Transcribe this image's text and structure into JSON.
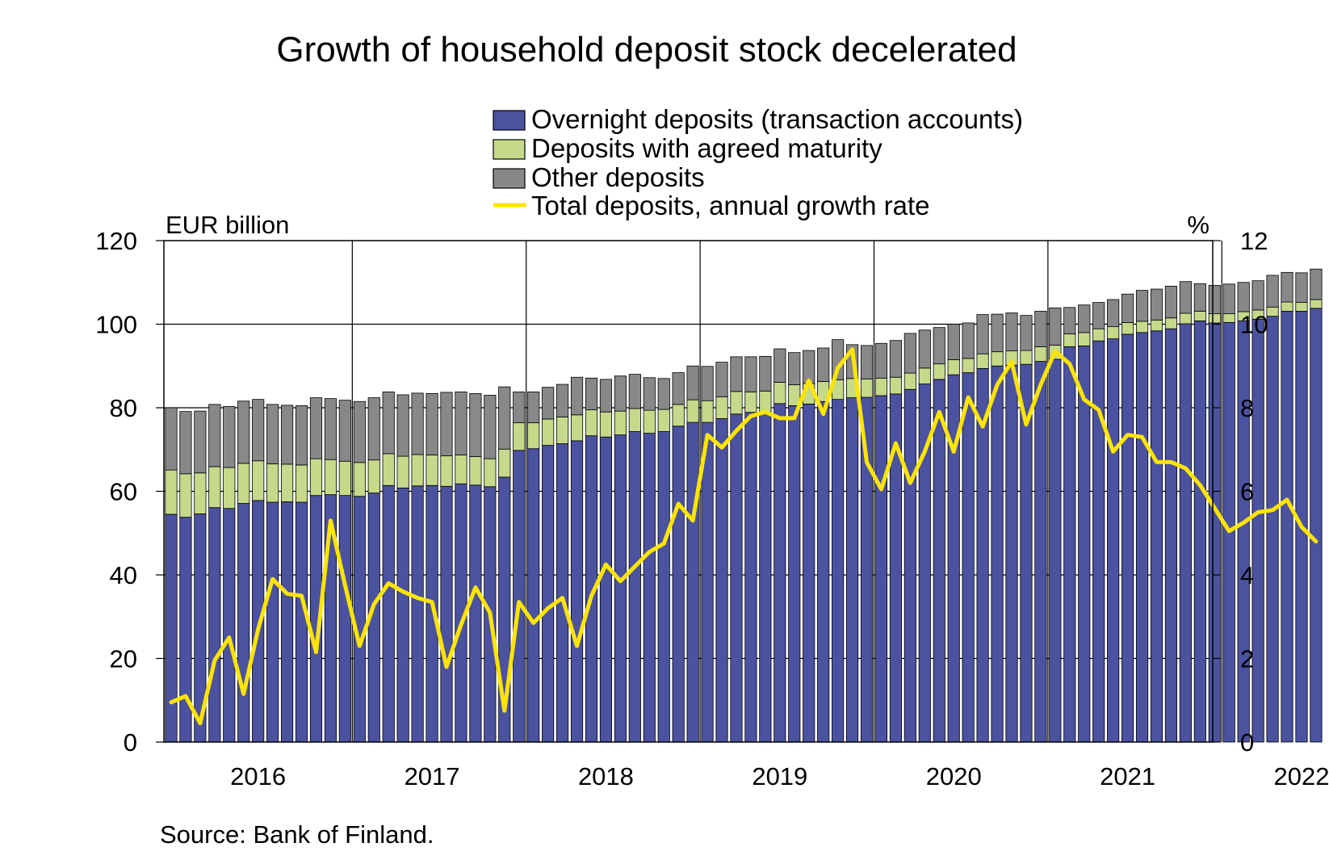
{
  "chart_data": {
    "type": "bar",
    "stacked": true,
    "title": "Growth of household deposit stock decelerated",
    "source": "Source: Bank of Finland.",
    "left_axis": {
      "unit_label": "EUR billion",
      "range": [
        0,
        120
      ],
      "ticks": [
        "0",
        "20",
        "40",
        "60",
        "80",
        "100",
        "120"
      ]
    },
    "right_axis": {
      "unit_label": "%",
      "range": [
        0,
        12
      ],
      "ticks": [
        "0",
        "2",
        "4",
        "6",
        "8",
        "10",
        "12"
      ]
    },
    "x_axis": {
      "years": [
        "2016",
        "2017",
        "2018",
        "2019",
        "2020",
        "2021",
        "2022"
      ],
      "start_month": "2015-12",
      "end_month": "2022-04",
      "frequency": "monthly"
    },
    "grid": true,
    "legend_position": "top-right",
    "colors": {
      "overnight": "#4B52A0",
      "agreed": "#C6D98A",
      "other": "#888888",
      "growth_line": "#FFE500"
    },
    "legend": {
      "overnight": "Overnight deposits (transaction accounts)",
      "agreed": "Deposits with agreed maturity",
      "other": "Other deposits",
      "growth": "Total deposits, annual growth rate"
    },
    "series": [
      {
        "name": "Overnight deposits (transaction accounts)",
        "axis": "left",
        "values": [
          54.5,
          53.8,
          54.6,
          56.1,
          55.9,
          57.1,
          57.8,
          57.4,
          57.5,
          57.4,
          59.0,
          59.2,
          59.0,
          58.8,
          59.6,
          61.4,
          60.8,
          61.3,
          61.4,
          61.2,
          61.8,
          61.5,
          61.1,
          63.4,
          69.8,
          70.2,
          71.0,
          71.4,
          72.1,
          73.3,
          73.0,
          73.5,
          74.3,
          73.9,
          74.3,
          75.6,
          76.5,
          76.5,
          77.4,
          78.5,
          78.9,
          79.0,
          81.0,
          80.5,
          80.9,
          81.5,
          82.0,
          82.4,
          82.5,
          82.9,
          83.3,
          84.4,
          85.7,
          86.8,
          87.9,
          88.4,
          89.4,
          90.0,
          90.2,
          90.4,
          91.1,
          91.6,
          94.6,
          94.8,
          96.0,
          96.5,
          97.6,
          98.0,
          98.4,
          98.9,
          100.1,
          100.8,
          100.3,
          100.4,
          100.8,
          101.2,
          101.9,
          103.1,
          103.1,
          103.8
        ]
      },
      {
        "name": "Deposits with agreed maturity",
        "axis": "left",
        "values": [
          10.6,
          10.4,
          9.8,
          9.8,
          9.8,
          9.6,
          9.5,
          9.2,
          9.0,
          8.9,
          8.8,
          8.4,
          8.2,
          8.1,
          7.9,
          7.6,
          7.6,
          7.5,
          7.3,
          7.3,
          6.9,
          6.8,
          6.7,
          6.7,
          6.6,
          6.2,
          6.3,
          6.4,
          6.2,
          6.2,
          6.0,
          5.7,
          5.5,
          5.5,
          5.3,
          5.2,
          5.4,
          5.2,
          5.2,
          5.4,
          4.9,
          5.0,
          5.1,
          5.0,
          4.9,
          4.8,
          4.7,
          4.6,
          4.4,
          4.2,
          4.0,
          3.9,
          3.8,
          3.7,
          3.6,
          3.4,
          3.5,
          3.4,
          3.4,
          3.3,
          3.5,
          3.4,
          3.1,
          3.2,
          2.9,
          2.9,
          2.8,
          2.7,
          2.6,
          2.6,
          2.5,
          2.3,
          2.2,
          2.1,
          2.2,
          2.2,
          2.2,
          2.2,
          2.1,
          2.1
        ]
      },
      {
        "name": "Other deposits",
        "axis": "left",
        "values": [
          14.9,
          14.9,
          14.8,
          14.9,
          14.6,
          14.9,
          14.7,
          14.2,
          14.1,
          14.2,
          14.6,
          14.6,
          14.6,
          14.6,
          14.9,
          14.8,
          14.7,
          14.7,
          14.7,
          15.2,
          15.1,
          15.1,
          15.2,
          14.9,
          7.4,
          7.4,
          7.6,
          7.8,
          9.0,
          7.6,
          7.8,
          8.4,
          8.2,
          7.8,
          7.4,
          7.6,
          8.1,
          8.2,
          8.3,
          8.3,
          8.4,
          8.3,
          8.0,
          7.7,
          7.9,
          8.0,
          9.6,
          8.1,
          8.0,
          8.3,
          8.8,
          9.5,
          9.1,
          8.7,
          8.5,
          8.5,
          9.4,
          9.0,
          9.1,
          8.4,
          8.5,
          8.9,
          6.3,
          6.6,
          6.3,
          6.5,
          6.8,
          7.4,
          7.4,
          7.6,
          7.6,
          6.6,
          6.8,
          7.1,
          7.0,
          7.0,
          7.6,
          7.1,
          7.1,
          7.3
        ]
      },
      {
        "name": "Total deposits, annual growth rate",
        "axis": "right",
        "type": "line",
        "values": [
          0.95,
          1.1,
          0.45,
          1.95,
          2.5,
          1.15,
          2.7,
          3.9,
          3.55,
          3.5,
          2.15,
          5.3,
          3.75,
          2.3,
          3.3,
          3.8,
          3.6,
          3.45,
          3.35,
          1.8,
          2.8,
          3.7,
          3.1,
          0.75,
          3.35,
          2.85,
          3.2,
          3.45,
          2.3,
          3.5,
          4.25,
          3.85,
          4.2,
          4.55,
          4.75,
          5.7,
          5.3,
          7.35,
          7.05,
          7.45,
          7.8,
          7.9,
          7.75,
          7.75,
          8.65,
          7.85,
          8.95,
          9.4,
          6.7,
          6.05,
          7.15,
          6.2,
          6.95,
          7.9,
          6.95,
          8.25,
          7.55,
          8.55,
          9.1,
          7.6,
          8.55,
          9.35,
          9.05,
          8.2,
          7.95,
          6.95,
          7.35,
          7.3,
          6.7,
          6.7,
          6.55,
          6.15,
          5.6,
          5.05,
          5.25,
          5.5,
          5.55,
          5.8,
          5.15,
          4.8
        ]
      }
    ]
  }
}
